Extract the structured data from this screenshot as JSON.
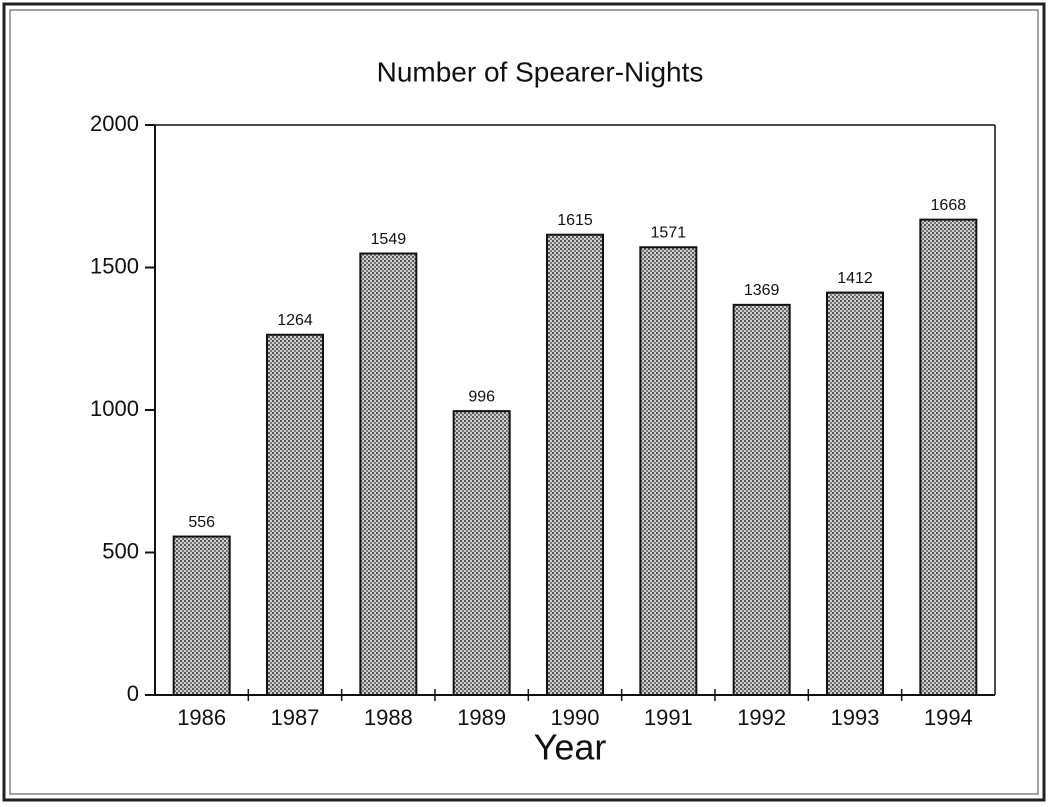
{
  "chart_data": {
    "type": "bar",
    "title": "Number of Spearer-Nights",
    "xlabel": "Year",
    "categories": [
      "1986",
      "1987",
      "1988",
      "1989",
      "1990",
      "1991",
      "1992",
      "1993",
      "1994"
    ],
    "values": [
      556,
      1264,
      1549,
      996,
      1615,
      1571,
      1369,
      1412,
      1668
    ],
    "color": "#9a9a9a",
    "ylim": [
      0,
      2000
    ],
    "yticks": [
      0,
      500,
      1000,
      1500,
      2000
    ],
    "grid": false
  }
}
